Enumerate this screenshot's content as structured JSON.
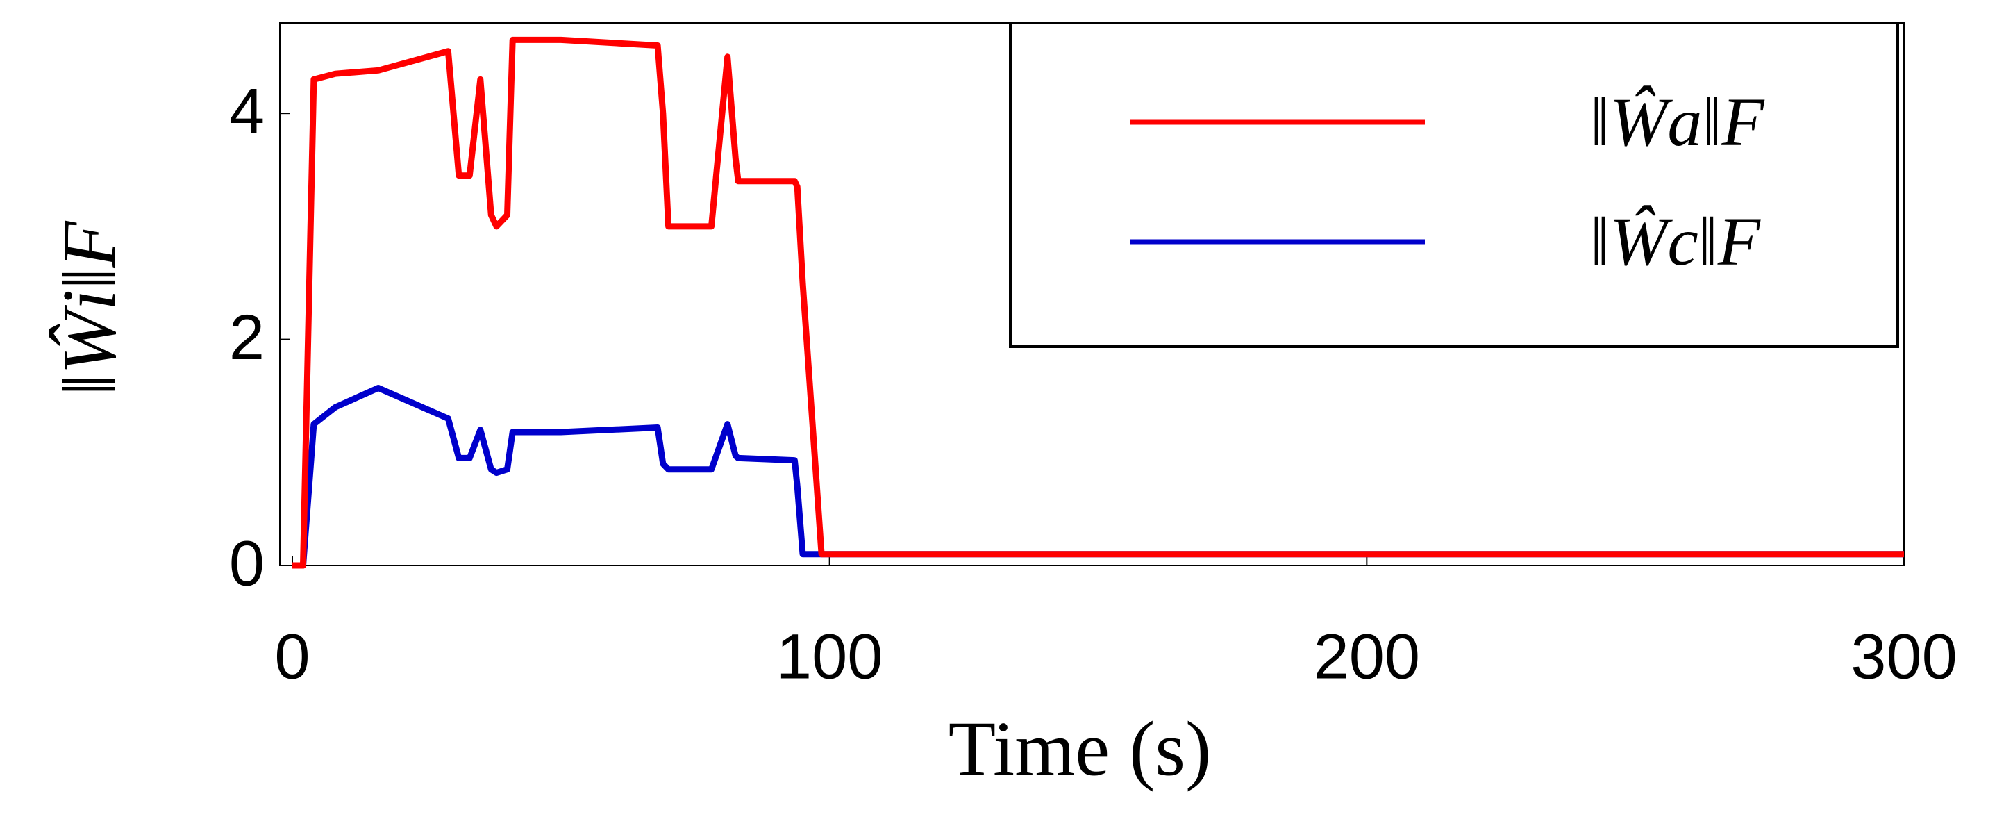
{
  "chart_data": {
    "type": "line",
    "xlabel": "Time (s)",
    "ylabel": "‖Ŵi‖F",
    "x": [
      0,
      2,
      4,
      8,
      16,
      29,
      31,
      33,
      35,
      37,
      38,
      40,
      41,
      50,
      68,
      69,
      70,
      78,
      81,
      82.5,
      83,
      93.5,
      94,
      95,
      98.5,
      100,
      200,
      300
    ],
    "series": [
      {
        "name": "‖Ŵc‖F",
        "color": "#0000cc",
        "values": [
          0,
          0,
          1.25,
          1.4,
          1.57,
          1.3,
          0.95,
          0.95,
          1.2,
          0.85,
          0.82,
          0.85,
          1.18,
          1.18,
          1.22,
          0.9,
          0.85,
          0.85,
          1.25,
          0.97,
          0.95,
          0.93,
          0.7,
          0.1,
          0.1,
          0.1,
          0.1,
          0.1
        ]
      },
      {
        "name": "‖Ŵa‖F",
        "color": "#ff0000",
        "values": [
          0,
          0,
          4.3,
          4.35,
          4.38,
          4.55,
          3.45,
          3.45,
          4.3,
          3.1,
          3.0,
          3.1,
          4.65,
          4.65,
          4.6,
          4.0,
          3.0,
          3.0,
          4.5,
          3.6,
          3.4,
          3.4,
          3.35,
          2.5,
          0.1,
          0.1,
          0.1,
          0.1
        ]
      }
    ],
    "xlim": [
      0,
      300
    ],
    "xticks": [
      0,
      100,
      200,
      300
    ],
    "ylim": [
      0,
      4.8
    ],
    "yticks": [
      0,
      2,
      4
    ]
  }
}
